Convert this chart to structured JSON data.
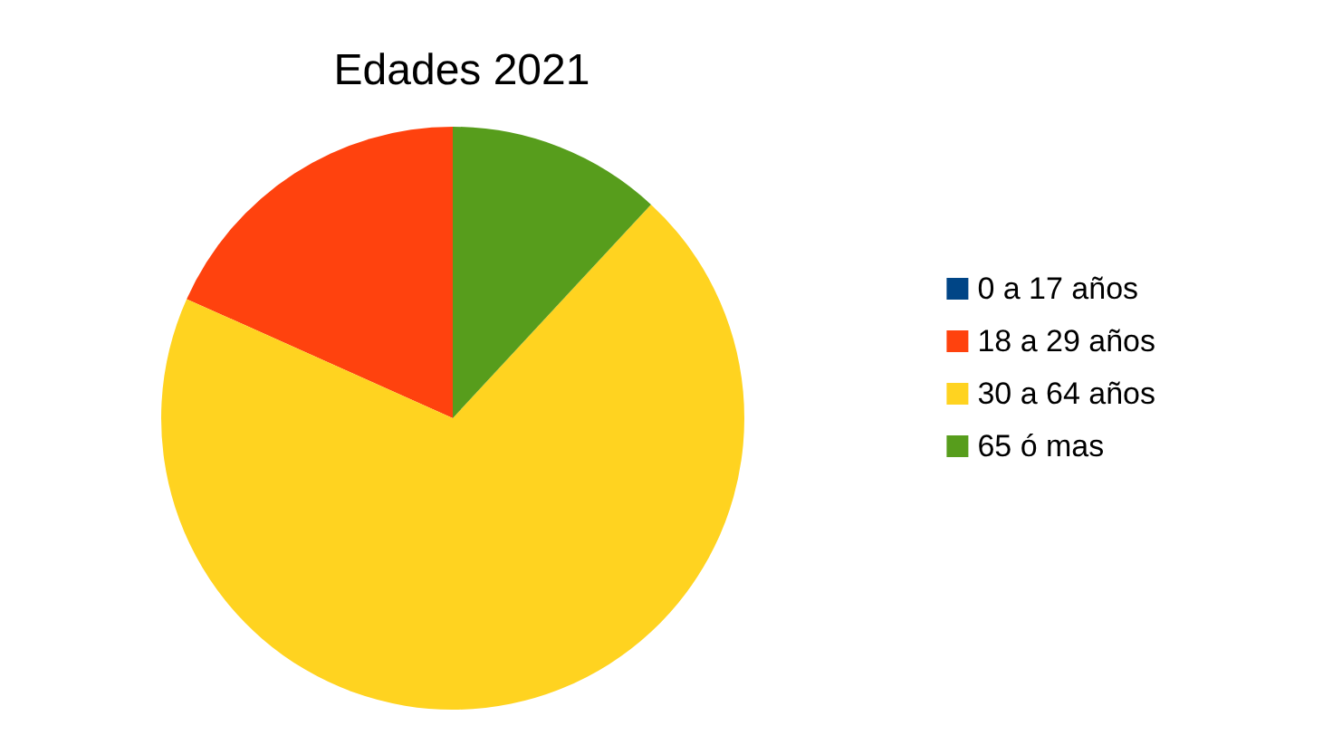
{
  "chart_data": {
    "type": "pie",
    "title": "Edades 2021",
    "categories": [
      "0 a 17 años",
      "18 a 29 años",
      "30 a 64 años",
      "65 ó mas"
    ],
    "values": [
      0,
      18.3,
      69.8,
      11.9
    ],
    "colors": [
      "#004586",
      "#ff420e",
      "#ffd320",
      "#579d1c"
    ],
    "legend": "right"
  }
}
